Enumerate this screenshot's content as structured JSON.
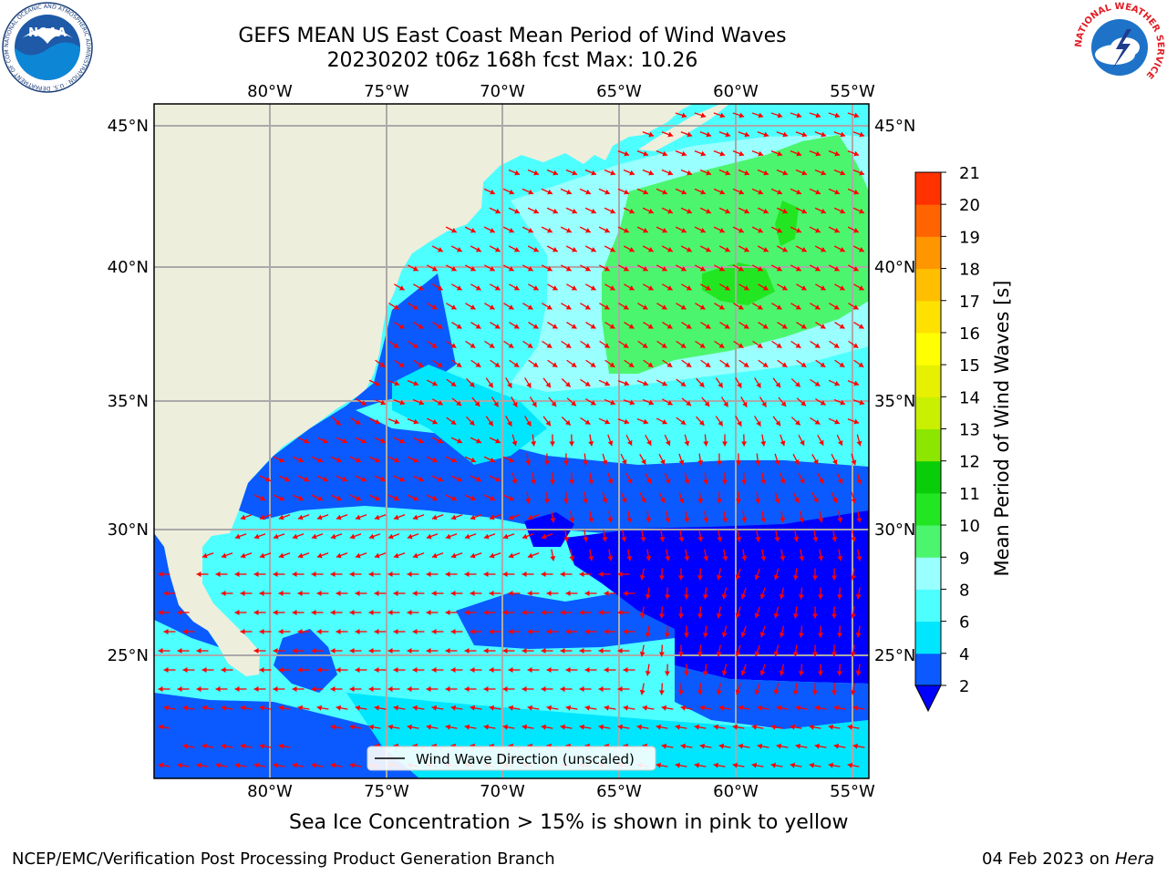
{
  "title": {
    "line1": "GEFS MEAN US East Coast Mean Period of Wind Waves",
    "line2": "20230202 t06z 168h fcst   Max: 10.26"
  },
  "map": {
    "lon_ticks": [
      "80°W",
      "75°W",
      "70°W",
      "65°W",
      "60°W",
      "55°W"
    ],
    "lat_ticks": [
      "45°N",
      "40°N",
      "35°N",
      "30°N",
      "25°N"
    ],
    "legend_label": "Wind Wave Direction (unscaled)",
    "extent": {
      "lon_min": -85,
      "lon_max": -54.3,
      "lat_min": 20.5,
      "lat_max": 46
    }
  },
  "colorbar": {
    "label": "Mean Period of Wind Waves [s]",
    "levels": [
      "2",
      "4",
      "6",
      "8",
      "9",
      "10",
      "11",
      "12",
      "13",
      "14",
      "15",
      "16",
      "17",
      "18",
      "19",
      "20",
      "21"
    ],
    "colors": [
      "#0a5aff",
      "#00e6ff",
      "#4dffff",
      "#99ffff",
      "#4cf56e",
      "#22e622",
      "#0acd0a",
      "#8ce600",
      "#c8f000",
      "#e6f000",
      "#ffff00",
      "#ffe100",
      "#ffbe00",
      "#ff9600",
      "#ff6400",
      "#ff3200",
      "#ff0000"
    ],
    "under_color": "#0000ff"
  },
  "colors": {
    "land": "#eeeedc",
    "grid": "#aaaaaa",
    "arrow": "#ff0000",
    "period_2_4": "#0a5aff",
    "period_under": "#0000ff",
    "period_4_6": "#00e6ff",
    "period_6_8": "#4dffff",
    "period_8_9": "#99ffff",
    "period_9_10": "#4cf56e",
    "period_10_11": "#22e622"
  },
  "footer": {
    "ice_note": "Sea Ice Concentration > 15% is shown in pink to yellow",
    "credit": "NCEP/EMC/Verification Post Processing Product Generation Branch",
    "date": "04 Feb 2023 on",
    "machine": "Hera"
  },
  "logos": {
    "noaa_text": "NOAA",
    "noaa_ring": "NATIONAL OCEANIC AND ATMOSPHERIC ADMINISTRATION · U.S. DEPARTMENT OF COMMERCE",
    "nws_ring": "NATIONAL WEATHER SERVICE"
  }
}
